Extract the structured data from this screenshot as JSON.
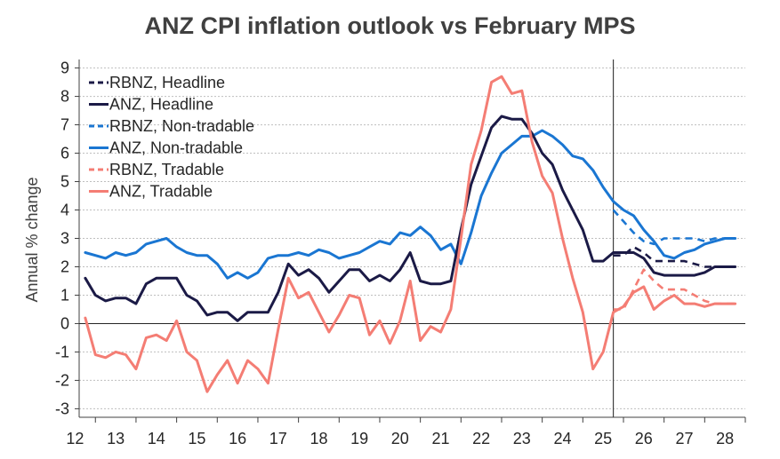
{
  "chart_data": {
    "type": "line",
    "title": "ANZ CPI inflation outlook vs February MPS",
    "ylabel": "Annual % change",
    "xlabel": "",
    "ylim": [
      -3.3,
      9.3
    ],
    "yticks": [
      9,
      8,
      7,
      6,
      5,
      4,
      3,
      2,
      1,
      0,
      -1,
      -2,
      -3
    ],
    "xlim": [
      2011.6,
      2028.0
    ],
    "xticks": [
      2012,
      2013,
      2014,
      2015,
      2016,
      2017,
      2018,
      2019,
      2020,
      2021,
      2022,
      2023,
      2024,
      2025,
      2026,
      2027,
      2028
    ],
    "xtick_labels": [
      "12",
      "13",
      "14",
      "15",
      "16",
      "17",
      "18",
      "19",
      "20",
      "21",
      "22",
      "23",
      "24",
      "25",
      "26",
      "27",
      "28"
    ],
    "forecast_divider_x": 2024.75,
    "grid": true,
    "legend_position": "top-left",
    "series": [
      {
        "name": "RBNZ, Headline",
        "style": "dashed",
        "color": "#1b1a46",
        "x": [
          2024.75,
          2025.0,
          2025.25,
          2025.5,
          2025.75,
          2026.0,
          2026.25,
          2026.5,
          2026.75,
          2027.0,
          2027.25,
          2027.5,
          2027.75
        ],
        "y": [
          2.4,
          2.4,
          2.7,
          2.5,
          2.2,
          2.2,
          2.2,
          2.2,
          2.1,
          2.0,
          2.0,
          2.0,
          2.0
        ]
      },
      {
        "name": "ANZ, Headline",
        "style": "solid",
        "color": "#1b1a46",
        "x": [
          2011.75,
          2012.0,
          2012.25,
          2012.5,
          2012.75,
          2013.0,
          2013.25,
          2013.5,
          2013.75,
          2014.0,
          2014.25,
          2014.5,
          2014.75,
          2015.0,
          2015.25,
          2015.5,
          2015.75,
          2016.0,
          2016.25,
          2016.5,
          2016.75,
          2017.0,
          2017.25,
          2017.5,
          2017.75,
          2018.0,
          2018.25,
          2018.5,
          2018.75,
          2019.0,
          2019.25,
          2019.5,
          2019.75,
          2020.0,
          2020.25,
          2020.5,
          2020.75,
          2021.0,
          2021.25,
          2021.5,
          2021.75,
          2022.0,
          2022.25,
          2022.5,
          2022.75,
          2023.0,
          2023.25,
          2023.5,
          2023.75,
          2024.0,
          2024.25,
          2024.5,
          2024.75,
          2025.0,
          2025.25,
          2025.5,
          2025.75,
          2026.0,
          2026.25,
          2026.5,
          2026.75,
          2027.0,
          2027.25,
          2027.5,
          2027.75
        ],
        "y": [
          1.6,
          1.0,
          0.8,
          0.9,
          0.9,
          0.7,
          1.4,
          1.6,
          1.6,
          1.6,
          1.0,
          0.8,
          0.3,
          0.4,
          0.4,
          0.1,
          0.4,
          0.4,
          0.4,
          1.1,
          2.1,
          1.7,
          1.9,
          1.6,
          1.1,
          1.5,
          1.9,
          1.9,
          1.5,
          1.7,
          1.5,
          1.9,
          2.5,
          1.5,
          1.4,
          1.4,
          1.5,
          3.3,
          4.9,
          5.9,
          6.9,
          7.3,
          7.2,
          7.2,
          6.7,
          6.0,
          5.6,
          4.7,
          4.0,
          3.3,
          2.2,
          2.2,
          2.5,
          2.5,
          2.5,
          2.3,
          1.8,
          1.7,
          1.7,
          1.7,
          1.7,
          1.8,
          2.0,
          2.0,
          2.0
        ]
      },
      {
        "name": "RBNZ, Non-tradable",
        "style": "dashed",
        "color": "#1a76d2",
        "x": [
          2024.75,
          2025.0,
          2025.25,
          2025.5,
          2025.75,
          2026.0,
          2026.25,
          2026.5,
          2026.75,
          2027.0,
          2027.25,
          2027.5,
          2027.75
        ],
        "y": [
          4.0,
          3.6,
          3.2,
          2.9,
          2.8,
          3.0,
          3.0,
          3.0,
          3.0,
          2.9,
          3.0,
          3.0,
          3.0
        ]
      },
      {
        "name": "ANZ, Non-tradable",
        "style": "solid",
        "color": "#1a76d2",
        "x": [
          2011.75,
          2012.0,
          2012.25,
          2012.5,
          2012.75,
          2013.0,
          2013.25,
          2013.5,
          2013.75,
          2014.0,
          2014.25,
          2014.5,
          2014.75,
          2015.0,
          2015.25,
          2015.5,
          2015.75,
          2016.0,
          2016.25,
          2016.5,
          2016.75,
          2017.0,
          2017.25,
          2017.5,
          2017.75,
          2018.0,
          2018.25,
          2018.5,
          2018.75,
          2019.0,
          2019.25,
          2019.5,
          2019.75,
          2020.0,
          2020.25,
          2020.5,
          2020.75,
          2021.0,
          2021.25,
          2021.5,
          2021.75,
          2022.0,
          2022.25,
          2022.5,
          2022.75,
          2023.0,
          2023.25,
          2023.5,
          2023.75,
          2024.0,
          2024.25,
          2024.5,
          2024.75,
          2025.0,
          2025.25,
          2025.5,
          2025.75,
          2026.0,
          2026.25,
          2026.5,
          2026.75,
          2027.0,
          2027.25,
          2027.5,
          2027.75
        ],
        "y": [
          2.5,
          2.4,
          2.3,
          2.5,
          2.4,
          2.5,
          2.8,
          2.9,
          3.0,
          2.7,
          2.5,
          2.4,
          2.4,
          2.1,
          1.6,
          1.8,
          1.6,
          1.8,
          2.3,
          2.4,
          2.4,
          2.5,
          2.4,
          2.6,
          2.5,
          2.3,
          2.4,
          2.5,
          2.7,
          2.9,
          2.8,
          3.2,
          3.1,
          3.4,
          3.1,
          2.6,
          2.8,
          2.1,
          3.2,
          4.5,
          5.3,
          6.0,
          6.3,
          6.6,
          6.6,
          6.8,
          6.6,
          6.3,
          5.9,
          5.8,
          5.4,
          4.8,
          4.3,
          4.0,
          3.8,
          3.3,
          2.9,
          2.4,
          2.3,
          2.5,
          2.6,
          2.8,
          2.9,
          3.0,
          3.0
        ]
      },
      {
        "name": "RBNZ, Tradable",
        "style": "dashed",
        "color": "#f47d74",
        "x": [
          2024.75,
          2025.0,
          2025.25,
          2025.5,
          2025.75,
          2026.0,
          2026.25,
          2026.5,
          2026.75,
          2027.0,
          2027.25,
          2027.5,
          2027.75
        ],
        "y": [
          0.5,
          0.5,
          1.2,
          1.9,
          1.5,
          1.2,
          1.2,
          1.2,
          1.0,
          0.8,
          0.7,
          0.7,
          0.7
        ]
      },
      {
        "name": "ANZ, Tradable",
        "style": "solid",
        "color": "#f47d74",
        "x": [
          2011.75,
          2012.0,
          2012.25,
          2012.5,
          2012.75,
          2013.0,
          2013.25,
          2013.5,
          2013.75,
          2014.0,
          2014.25,
          2014.5,
          2014.75,
          2015.0,
          2015.25,
          2015.5,
          2015.75,
          2016.0,
          2016.25,
          2016.5,
          2016.75,
          2017.0,
          2017.25,
          2017.5,
          2017.75,
          2018.0,
          2018.25,
          2018.5,
          2018.75,
          2019.0,
          2019.25,
          2019.5,
          2019.75,
          2020.0,
          2020.25,
          2020.5,
          2020.75,
          2021.0,
          2021.25,
          2021.5,
          2021.75,
          2022.0,
          2022.25,
          2022.5,
          2022.75,
          2023.0,
          2023.25,
          2023.5,
          2023.75,
          2024.0,
          2024.25,
          2024.5,
          2024.75,
          2025.0,
          2025.25,
          2025.5,
          2025.75,
          2026.0,
          2026.25,
          2026.5,
          2026.75,
          2027.0,
          2027.25,
          2027.5,
          2027.75
        ],
        "y": [
          0.2,
          -1.1,
          -1.2,
          -1.0,
          -1.1,
          -1.6,
          -0.5,
          -0.4,
          -0.6,
          0.1,
          -1.0,
          -1.3,
          -2.4,
          -1.8,
          -1.3,
          -2.1,
          -1.3,
          -1.6,
          -2.1,
          -0.2,
          1.6,
          0.9,
          1.1,
          0.4,
          -0.3,
          0.3,
          1.0,
          0.9,
          -0.4,
          0.1,
          -0.7,
          0.1,
          1.5,
          -0.6,
          -0.1,
          -0.3,
          0.5,
          3.0,
          5.6,
          6.8,
          8.5,
          8.7,
          8.1,
          8.2,
          6.4,
          5.2,
          4.6,
          3.0,
          1.6,
          0.4,
          -1.6,
          -1.0,
          0.4,
          0.6,
          1.1,
          1.3,
          0.5,
          0.8,
          1.0,
          0.7,
          0.7,
          0.6,
          0.7,
          0.7,
          0.7
        ]
      }
    ]
  }
}
